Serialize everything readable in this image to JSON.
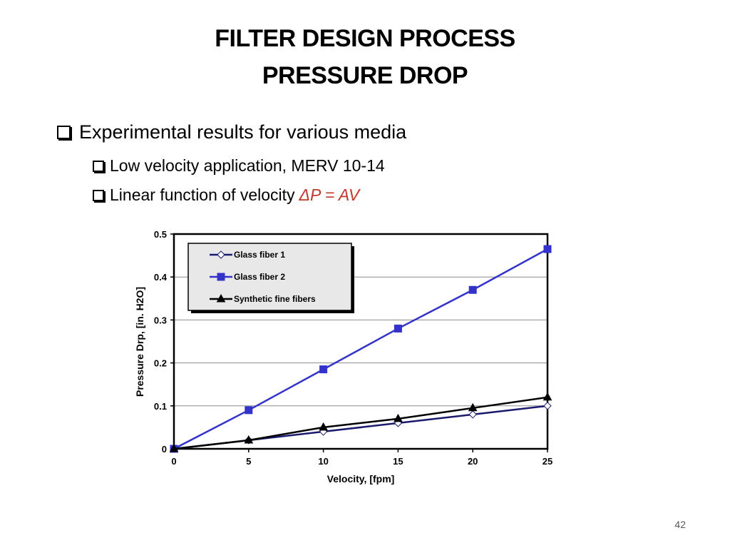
{
  "slide": {
    "title_line1": "FILTER DESIGN PROCESS",
    "title_line2": "PRESSURE DROP",
    "bullets": {
      "b1": "Experimental results for various media",
      "b2": "Low velocity application, MERV 10-14",
      "b3_text": "Linear function of velocity",
      "b3_formula": "ΔP = AV"
    },
    "page_number": "42",
    "colors": {
      "formula": "#c0392b"
    }
  },
  "chart_data": {
    "type": "line",
    "title": "",
    "xlabel": "Velocity, [fpm]",
    "ylabel": "Pressure Drp, [in. H2O]",
    "xlim": [
      0,
      25
    ],
    "ylim": [
      0,
      0.5
    ],
    "x_ticks": [
      "0",
      "5",
      "10",
      "15",
      "20",
      "25"
    ],
    "y_ticks": [
      "0",
      "0.1",
      "0.2",
      "0.3",
      "0.4",
      "0.5"
    ],
    "grid": "horizontal",
    "legend_position": "top-left",
    "x": [
      0,
      5,
      10,
      15,
      20,
      25
    ],
    "series": [
      {
        "name": "Glass fiber 1",
        "values": [
          0,
          0.02,
          0.04,
          0.06,
          0.08,
          0.1
        ],
        "color": "#1a1a6e",
        "marker": "diamond-open"
      },
      {
        "name": "Glass fiber 2",
        "values": [
          0,
          0.09,
          0.185,
          0.28,
          0.37,
          0.465
        ],
        "color": "#3333cc",
        "marker": "square"
      },
      {
        "name": "Synthetic fine fibers",
        "values": [
          0,
          0.02,
          0.05,
          0.07,
          0.095,
          0.12
        ],
        "color": "#000000",
        "marker": "triangle"
      }
    ]
  }
}
